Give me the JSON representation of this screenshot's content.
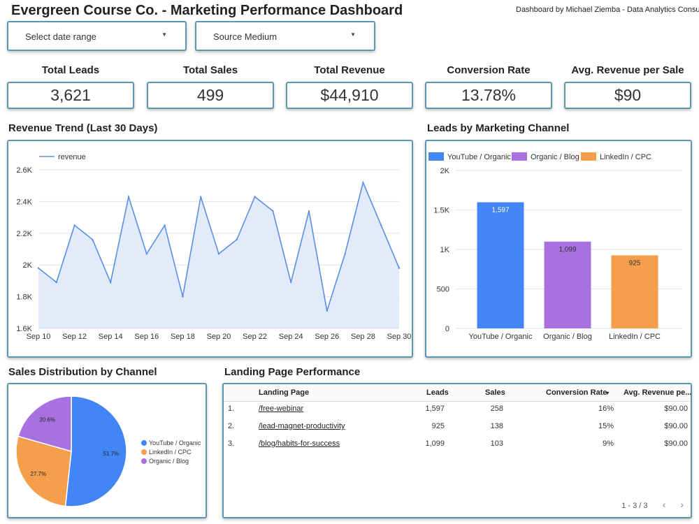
{
  "header": {
    "title": "Evergreen Course Co. - Marketing Performance Dashboard",
    "byline": "Dashboard by Michael Ziemba - Data Analytics Consultant"
  },
  "filters": {
    "date_range": "Select date range",
    "source_medium": "Source Medium"
  },
  "kpis": [
    {
      "label": "Total Leads",
      "value": "3,621"
    },
    {
      "label": "Total Sales",
      "value": "499"
    },
    {
      "label": "Total Revenue",
      "value": "$44,910"
    },
    {
      "label": "Conversion Rate",
      "value": "13.78%"
    },
    {
      "label": "Avg. Revenue per Sale",
      "value": "$90"
    }
  ],
  "sections": {
    "revenue_trend": "Revenue Trend (Last 30 Days)",
    "leads_by_channel": "Leads by Marketing Channel",
    "sales_distribution": "Sales Distribution by Channel",
    "landing_page": "Landing Page Performance"
  },
  "colors": {
    "accent_border": "#5b95b0",
    "line": "#5b8ee6",
    "area": "#dde8f8",
    "youtube": "#4285f4",
    "organic": "#a970e0",
    "linkedin": "#f59e4c"
  },
  "chart_data": [
    {
      "type": "line",
      "legend": "revenue",
      "x": [
        "Sep 10",
        "Sep 11",
        "Sep 12",
        "Sep 13",
        "Sep 14",
        "Sep 15",
        "Sep 16",
        "Sep 17",
        "Sep 18",
        "Sep 19",
        "Sep 20",
        "Sep 21",
        "Sep 22",
        "Sep 23",
        "Sep 24",
        "Sep 25",
        "Sep 26",
        "Sep 27",
        "Sep 28",
        "Sep 29",
        "Sep 30"
      ],
      "x_ticks": [
        "Sep 10",
        "Sep 12",
        "Sep 14",
        "Sep 16",
        "Sep 18",
        "Sep 20",
        "Sep 22",
        "Sep 24",
        "Sep 26",
        "Sep 28",
        "Sep 30"
      ],
      "values": [
        1980,
        1890,
        2250,
        2160,
        1890,
        2430,
        2070,
        2250,
        1800,
        2430,
        2070,
        2160,
        2430,
        2340,
        1890,
        2340,
        1710,
        2070,
        2520,
        2250,
        1980
      ],
      "y_ticks": [
        "1.6K",
        "1.8K",
        "2K",
        "2.2K",
        "2.4K",
        "2.6K"
      ],
      "ylim": [
        1600,
        2600
      ]
    },
    {
      "type": "bar",
      "categories": [
        "YouTube / Organic",
        "Organic / Blog",
        "LinkedIn / CPC"
      ],
      "values": [
        1597,
        1099,
        925
      ],
      "value_labels": [
        "1,597",
        "1,099",
        "925"
      ],
      "legend": [
        "YouTube / Organic",
        "Organic / Blog",
        "LinkedIn / CPC"
      ],
      "y_ticks": [
        "0",
        "500",
        "1K",
        "1.5K",
        "2K"
      ],
      "ylim": [
        0,
        2000
      ]
    },
    {
      "type": "pie",
      "slices": [
        {
          "name": "YouTube / Organic",
          "value": 51.7,
          "label": "51.7%"
        },
        {
          "name": "LinkedIn / CPC",
          "value": 27.7,
          "label": "27.7%"
        },
        {
          "name": "Organic / Blog",
          "value": 20.6,
          "label": "20.6%"
        }
      ]
    }
  ],
  "landing_table": {
    "headers": [
      "Landing Page",
      "Leads",
      "Sales",
      "Conversion Rate",
      "Avg. Revenue pe..."
    ],
    "sort_icon": "▾",
    "rows": [
      {
        "idx": "1.",
        "page": "/free-webinar",
        "leads": "1,597",
        "sales": "258",
        "conv": "16%",
        "avg": "$90.00"
      },
      {
        "idx": "2.",
        "page": "/lead-magnet-productivity",
        "leads": "925",
        "sales": "138",
        "conv": "15%",
        "avg": "$90.00"
      },
      {
        "idx": "3.",
        "page": "/blog/habits-for-success",
        "leads": "1,099",
        "sales": "103",
        "conv": "9%",
        "avg": "$90.00"
      }
    ],
    "pager": "1 - 3 / 3",
    "prev_icon": "‹",
    "next_icon": "›"
  }
}
